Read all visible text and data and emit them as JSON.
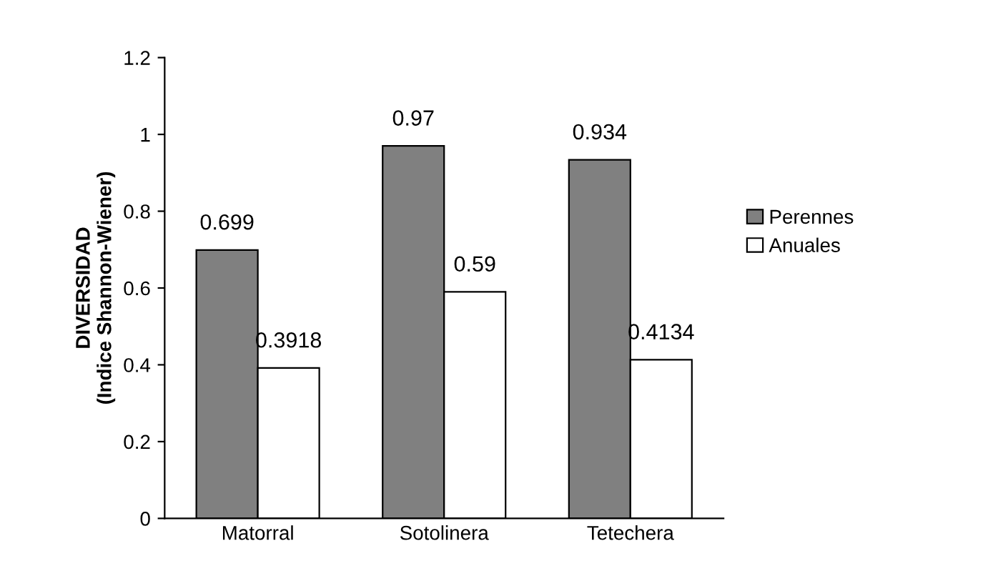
{
  "chart_data": {
    "type": "bar",
    "ylabel": "DIVERSIDAD\n(Indice Shannon-Wiener)",
    "categories": [
      "Matorral",
      "Sotolinera",
      "Tetechera"
    ],
    "series": [
      {
        "name": "Perennes",
        "color": "#808080",
        "values": [
          0.699,
          0.97,
          0.934
        ]
      },
      {
        "name": "Anuales",
        "color": "#ffffff",
        "values": [
          0.3918,
          0.59,
          0.4134
        ]
      }
    ],
    "ylim": [
      0,
      1.2
    ],
    "yticks": [
      0,
      0.2,
      0.4,
      0.6,
      0.8,
      1,
      1.2
    ],
    "grid": false,
    "legend": "right",
    "data_labels": true
  }
}
